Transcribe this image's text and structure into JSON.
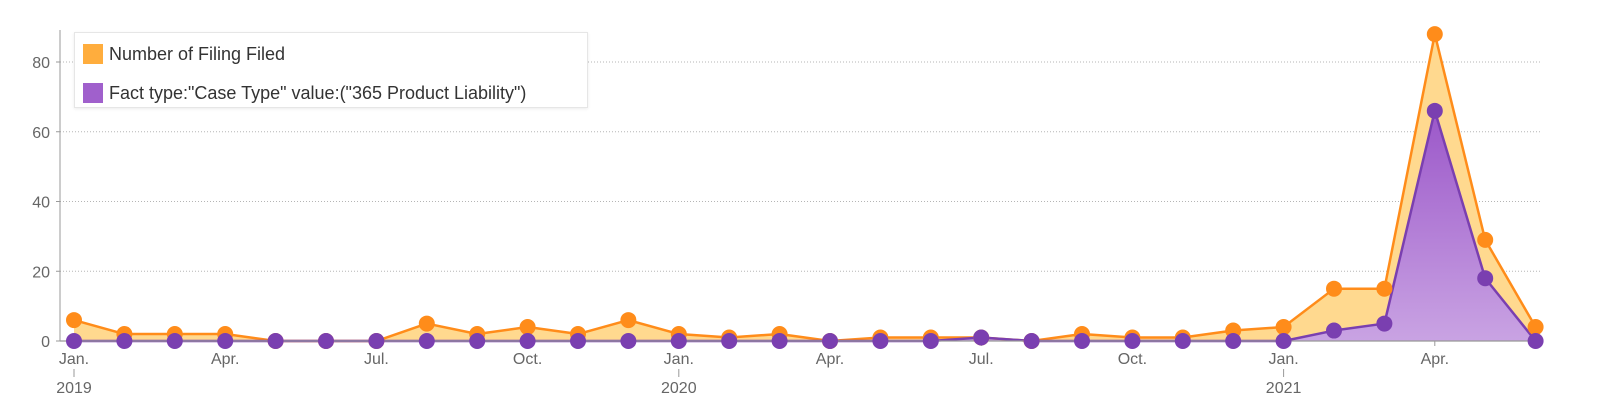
{
  "chart_data": {
    "type": "area",
    "x": [
      "2019-01",
      "2019-02",
      "2019-03",
      "2019-04",
      "2019-05",
      "2019-06",
      "2019-07",
      "2019-08",
      "2019-09",
      "2019-10",
      "2019-11",
      "2019-12",
      "2020-01",
      "2020-02",
      "2020-03",
      "2020-04",
      "2020-05",
      "2020-06",
      "2020-07",
      "2020-08",
      "2020-09",
      "2020-10",
      "2020-11",
      "2020-12",
      "2021-01",
      "2021-02",
      "2021-03",
      "2021-04",
      "2021-05",
      "2021-06"
    ],
    "series": [
      {
        "name": "Number of Filing Filed",
        "color": "#ff8c1a",
        "fill": "#ffd98f",
        "values": [
          6,
          2,
          2,
          2,
          0,
          0,
          0,
          5,
          2,
          4,
          2,
          6,
          2,
          1,
          2,
          0,
          1,
          1,
          1,
          0,
          2,
          1,
          1,
          3,
          4,
          15,
          15,
          88,
          29,
          4
        ]
      },
      {
        "name": "Fact type:\"Case Type\" value:(\"365 Product Liability\")",
        "color": "#7a3fb0",
        "fill": "#b98ad8",
        "values": [
          0,
          0,
          0,
          0,
          0,
          0,
          0,
          0,
          0,
          0,
          0,
          0,
          0,
          0,
          0,
          0,
          0,
          0,
          1,
          0,
          0,
          0,
          0,
          0,
          0,
          3,
          5,
          66,
          18,
          0
        ]
      }
    ],
    "x_ticks": [
      {
        "label": "Jan.",
        "at": "2019-01"
      },
      {
        "label": "Apr.",
        "at": "2019-04"
      },
      {
        "label": "Jul.",
        "at": "2019-07"
      },
      {
        "label": "Oct.",
        "at": "2019-10"
      },
      {
        "label": "Jan.",
        "at": "2020-01"
      },
      {
        "label": "Apr.",
        "at": "2020-04"
      },
      {
        "label": "Jul.",
        "at": "2020-07"
      },
      {
        "label": "Oct.",
        "at": "2020-10"
      },
      {
        "label": "Jan.",
        "at": "2021-01"
      },
      {
        "label": "Apr.",
        "at": "2021-04"
      }
    ],
    "year_labels": [
      {
        "label": "2019",
        "at": "2019-01"
      },
      {
        "label": "2020",
        "at": "2020-01"
      },
      {
        "label": "2021",
        "at": "2021-01"
      }
    ],
    "y_ticks": [
      0,
      20,
      40,
      60,
      80
    ],
    "ylim": [
      0,
      90
    ],
    "grid": true,
    "legend_position": "top-left"
  }
}
